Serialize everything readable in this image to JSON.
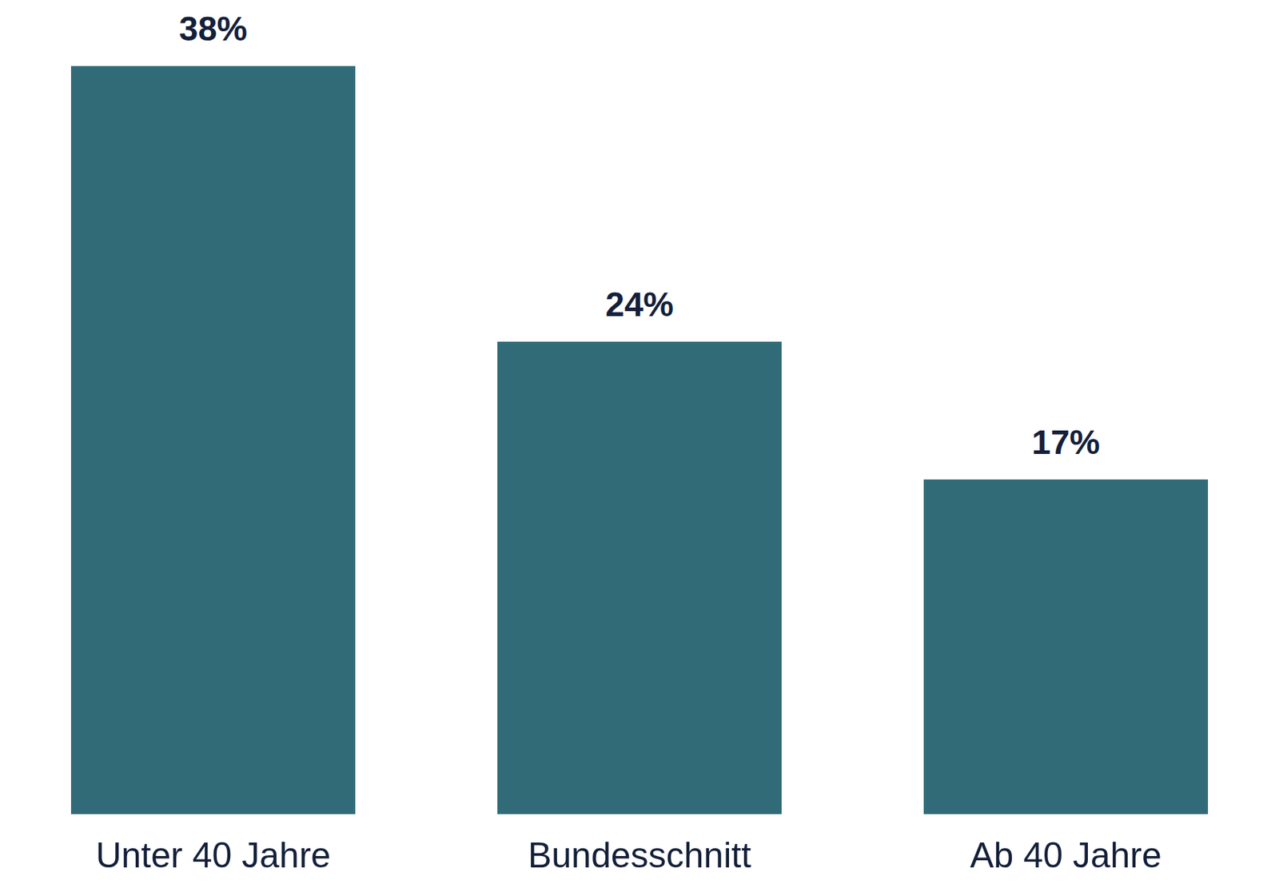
{
  "chart_data": {
    "type": "bar",
    "categories": [
      "Unter 40 Jahre",
      "Bundesschnitt",
      "Ab 40 Jahre"
    ],
    "values": [
      38,
      24,
      17
    ],
    "value_labels": [
      "38%",
      "24%",
      "17%"
    ],
    "color": "#326b78",
    "data_labels": true,
    "tick_labels": "x",
    "grid": false
  }
}
